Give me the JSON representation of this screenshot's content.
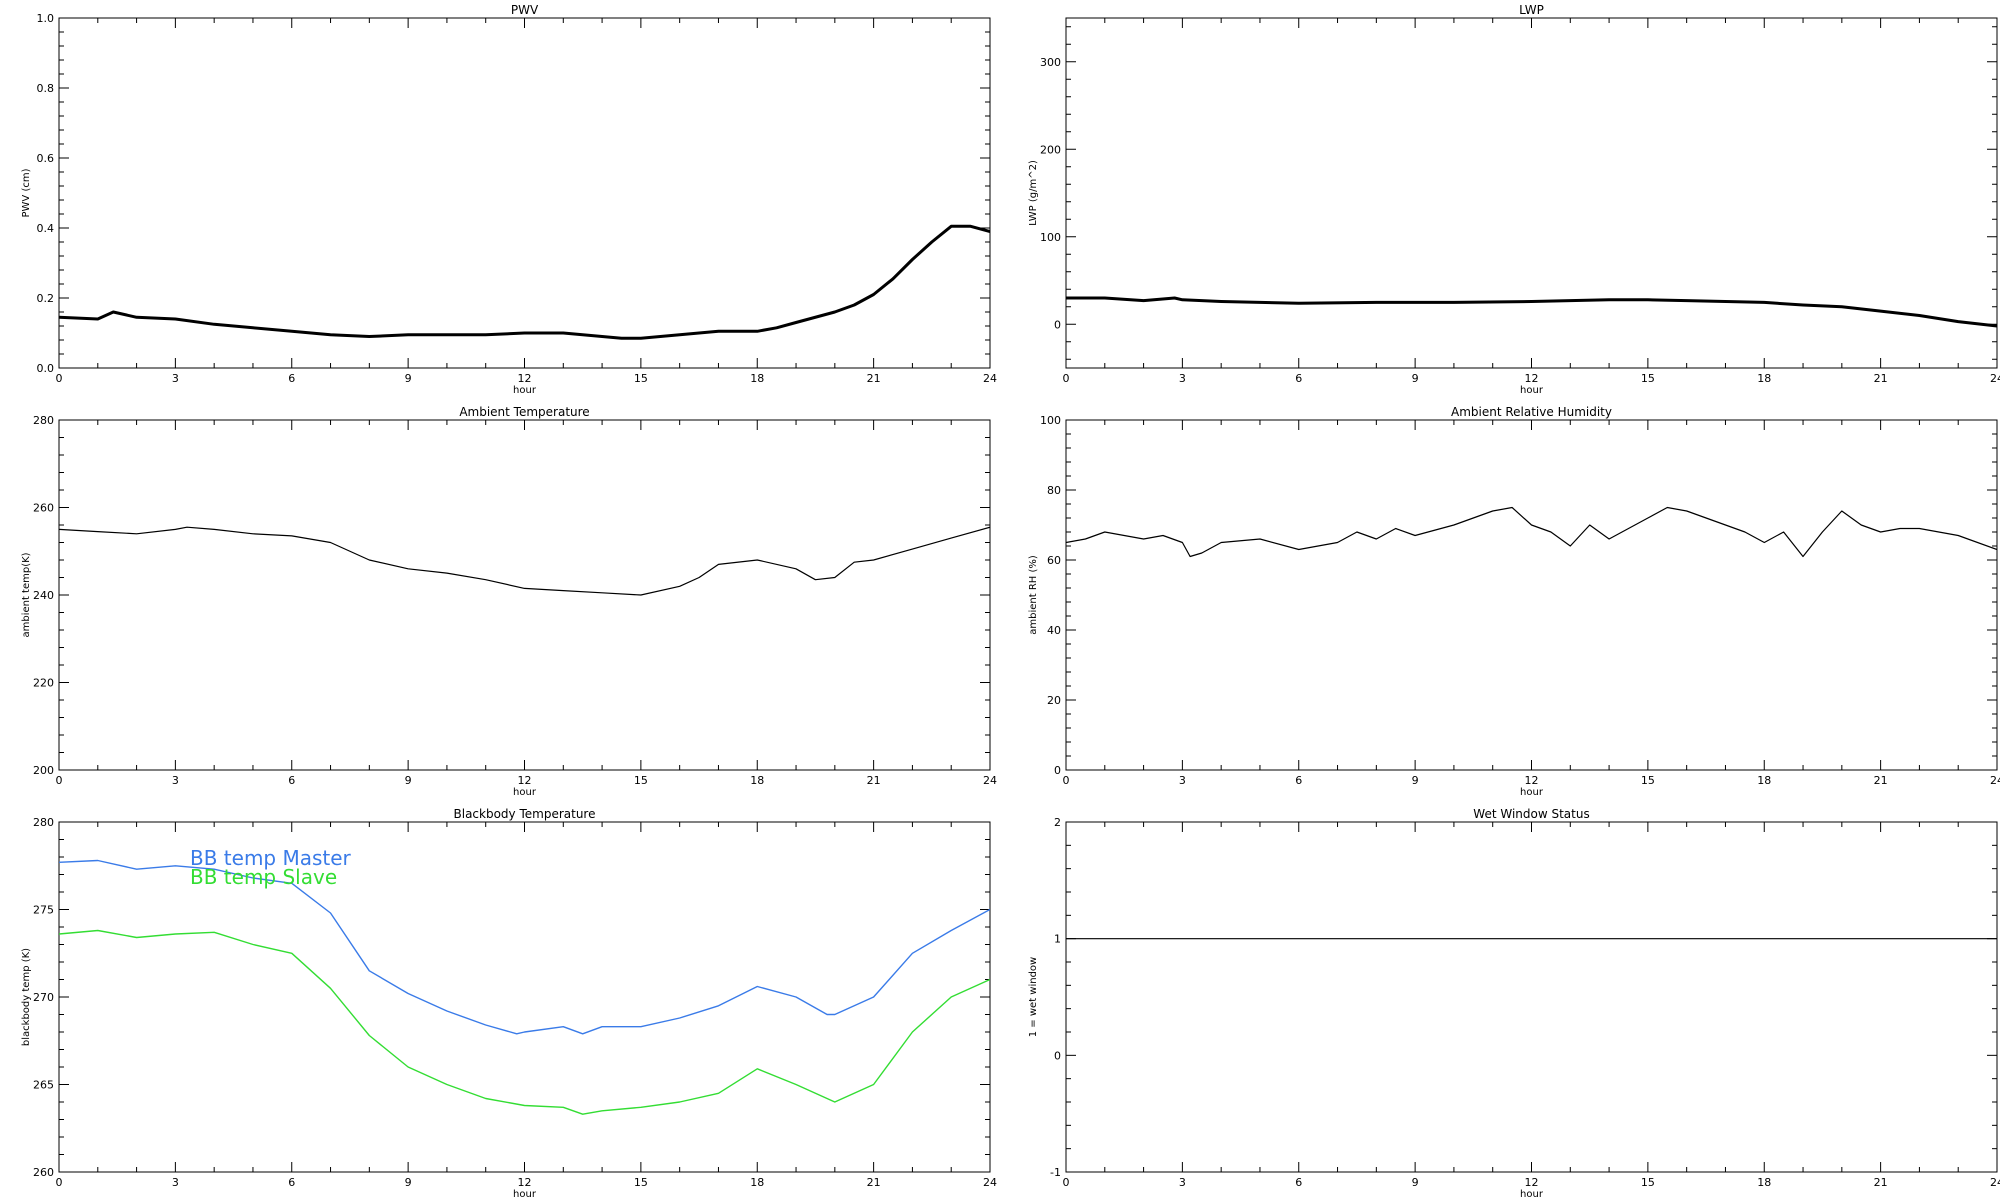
{
  "chart_data": [
    {
      "id": "pwv",
      "type": "line",
      "title": "PWV",
      "xlabel": "hour",
      "ylabel": "PWV (cm)",
      "xlim": [
        0,
        24
      ],
      "ylim": [
        0.0,
        1.0
      ],
      "x_ticks": [
        "0",
        "3",
        "6",
        "9",
        "12",
        "15",
        "18",
        "21",
        "24"
      ],
      "y_ticks": [
        "0.0",
        "0.2",
        "0.4",
        "0.6",
        "0.8",
        "1.0"
      ],
      "series": [
        {
          "color": "#000000",
          "x": [
            0,
            1,
            1.4,
            2,
            3,
            4,
            5,
            6,
            7,
            8,
            9,
            10,
            11,
            12,
            13,
            14,
            14.5,
            15,
            16,
            17,
            18,
            18.5,
            19,
            20,
            20.5,
            21,
            21.5,
            22,
            22.5,
            23,
            23.5,
            24
          ],
          "y": [
            0.145,
            0.14,
            0.16,
            0.145,
            0.14,
            0.125,
            0.115,
            0.105,
            0.095,
            0.09,
            0.095,
            0.095,
            0.095,
            0.1,
            0.1,
            0.09,
            0.085,
            0.085,
            0.095,
            0.105,
            0.105,
            0.115,
            0.13,
            0.16,
            0.18,
            0.21,
            0.255,
            0.31,
            0.36,
            0.405,
            0.405,
            0.39
          ]
        }
      ]
    },
    {
      "id": "lwp",
      "type": "line",
      "title": "LWP",
      "xlabel": "hour",
      "ylabel": "LWP (g/m^2)",
      "xlim": [
        0,
        24
      ],
      "ylim": [
        -50,
        350
      ],
      "x_ticks": [
        "0",
        "3",
        "6",
        "9",
        "12",
        "15",
        "18",
        "21",
        "24"
      ],
      "y_ticks": [
        "0",
        "100",
        "200",
        "300"
      ],
      "series": [
        {
          "color": "#000000",
          "x": [
            0,
            1,
            2,
            2.8,
            3,
            4,
            6,
            8,
            10,
            12,
            13,
            14,
            15,
            16,
            17,
            18,
            19,
            20,
            21,
            22,
            23,
            24
          ],
          "y": [
            30,
            30,
            27,
            30,
            28,
            26,
            24,
            25,
            25,
            26,
            27,
            28,
            28,
            27,
            26,
            25,
            22,
            20,
            15,
            10,
            3,
            -2
          ]
        }
      ]
    },
    {
      "id": "ambient-temp",
      "type": "line",
      "title": "Ambient Temperature",
      "xlabel": "hour",
      "ylabel": "ambient temp(K)",
      "xlim": [
        0,
        24
      ],
      "ylim": [
        200,
        280
      ],
      "x_ticks": [
        "0",
        "3",
        "6",
        "9",
        "12",
        "15",
        "18",
        "21",
        "24"
      ],
      "y_ticks": [
        "200",
        "220",
        "240",
        "260",
        "280"
      ],
      "series": [
        {
          "color": "#000000",
          "x": [
            0,
            1,
            2,
            3,
            3.3,
            4,
            5,
            6,
            7,
            8,
            9,
            10,
            11,
            12,
            13,
            14,
            15,
            16,
            16.5,
            17,
            18,
            19,
            19.5,
            20,
            20.5,
            21,
            22,
            23,
            24
          ],
          "y": [
            255,
            254.5,
            254,
            255,
            255.5,
            255,
            254,
            253.5,
            252,
            248,
            246,
            245,
            243.5,
            241.5,
            241,
            240.5,
            240,
            242,
            244,
            247,
            248,
            246,
            243.5,
            244,
            247.5,
            248,
            250.5,
            253,
            255.5
          ]
        }
      ]
    },
    {
      "id": "ambient-rh",
      "type": "line",
      "title": "Ambient Relative Humidity",
      "xlabel": "hour",
      "ylabel": "ambient RH (%)",
      "xlim": [
        0,
        24
      ],
      "ylim": [
        0,
        100
      ],
      "x_ticks": [
        "0",
        "3",
        "6",
        "9",
        "12",
        "15",
        "18",
        "21",
        "24"
      ],
      "y_ticks": [
        "0",
        "20",
        "40",
        "60",
        "80",
        "100"
      ],
      "series": [
        {
          "color": "#000000",
          "x": [
            0,
            0.5,
            1,
            1.5,
            2,
            2.5,
            3,
            3.2,
            3.5,
            4,
            5,
            6,
            6.5,
            7,
            7.5,
            8,
            8.5,
            9,
            10,
            10.5,
            11,
            11.5,
            12,
            12.5,
            13,
            13.5,
            14,
            14.5,
            15,
            15.5,
            16,
            16.5,
            17,
            17.5,
            18,
            18.5,
            19,
            19.5,
            20,
            20.5,
            21,
            21.5,
            22,
            23,
            24
          ],
          "y": [
            65,
            66,
            68,
            67,
            66,
            67,
            65,
            61,
            62,
            65,
            66,
            63,
            64,
            65,
            68,
            66,
            69,
            67,
            70,
            72,
            74,
            75,
            70,
            68,
            64,
            70,
            66,
            69,
            72,
            75,
            74,
            72,
            70,
            68,
            65,
            68,
            61,
            68,
            74,
            70,
            68,
            69,
            69,
            67,
            63
          ]
        }
      ]
    },
    {
      "id": "bb-temp",
      "type": "line",
      "title": "Blackbody Temperature",
      "xlabel": "hour",
      "ylabel": "blackbody temp (K)",
      "xlim": [
        0,
        24
      ],
      "ylim": [
        260,
        280
      ],
      "x_ticks": [
        "0",
        "3",
        "6",
        "9",
        "12",
        "15",
        "18",
        "21",
        "24"
      ],
      "y_ticks": [
        "260",
        "265",
        "270",
        "275",
        "280"
      ],
      "legend": [
        "BB temp Master",
        "BB temp Slave"
      ],
      "series": [
        {
          "name": "BB temp Master",
          "color": "#3a7be8",
          "x": [
            0,
            1,
            2,
            3,
            4,
            5,
            6,
            7,
            8,
            9,
            10,
            11,
            11.8,
            12,
            13,
            13.5,
            14,
            15,
            16,
            17,
            18,
            19,
            19.8,
            20,
            21,
            22,
            23,
            24
          ],
          "y": [
            277.7,
            277.8,
            277.3,
            277.5,
            277.3,
            276.8,
            276.5,
            274.8,
            271.5,
            270.2,
            269.2,
            268.4,
            267.9,
            268,
            268.3,
            267.9,
            268.3,
            268.3,
            268.8,
            269.5,
            270.6,
            270,
            269,
            269,
            270,
            272.5,
            273.8,
            275
          ]
        },
        {
          "name": "BB temp Slave",
          "color": "#33dd33",
          "x": [
            0,
            1,
            2,
            3,
            4,
            5,
            6,
            7,
            8,
            9,
            10,
            11,
            12,
            13,
            13.5,
            14,
            15,
            16,
            17,
            18,
            19,
            20,
            21,
            22,
            23,
            24
          ],
          "y": [
            273.6,
            273.8,
            273.4,
            273.6,
            273.7,
            273,
            272.5,
            270.5,
            267.8,
            266,
            265,
            264.2,
            263.8,
            263.7,
            263.3,
            263.5,
            263.7,
            264,
            264.5,
            265.9,
            265,
            264,
            265,
            268,
            270,
            271
          ]
        }
      ]
    },
    {
      "id": "wet-window",
      "type": "line",
      "title": "Wet Window Status",
      "xlabel": "hour",
      "ylabel": "1 = wet window",
      "xlim": [
        0,
        24
      ],
      "ylim": [
        -1,
        2
      ],
      "x_ticks": [
        "0",
        "3",
        "6",
        "9",
        "12",
        "15",
        "18",
        "21",
        "24"
      ],
      "y_ticks": [
        "-1",
        "0",
        "1",
        "2"
      ],
      "series": [
        {
          "color": "#000000",
          "x": [
            0,
            24
          ],
          "y": [
            1,
            1
          ]
        }
      ]
    }
  ]
}
